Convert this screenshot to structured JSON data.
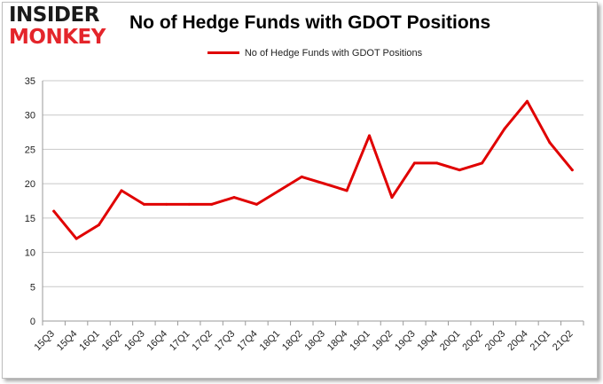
{
  "logo": {
    "line1": "INSIDER",
    "line2": "MONKEY"
  },
  "chart_data": {
    "type": "line",
    "title": "No of Hedge Funds with GDOT Positions",
    "xlabel": "",
    "ylabel": "",
    "categories": [
      "15Q3",
      "15Q4",
      "16Q1",
      "16Q2",
      "16Q3",
      "16Q4",
      "17Q1",
      "17Q2",
      "17Q3",
      "17Q4",
      "18Q1",
      "18Q2",
      "18Q3",
      "18Q4",
      "19Q1",
      "19Q2",
      "19Q3",
      "19Q4",
      "20Q1",
      "20Q2",
      "20Q3",
      "20Q4",
      "21Q1",
      "21Q2"
    ],
    "series": [
      {
        "name": "No of Hedge Funds with GDOT Positions",
        "color": "#e00000",
        "values": [
          16,
          12,
          14,
          19,
          17,
          17,
          17,
          17,
          18,
          17,
          19,
          21,
          20,
          19,
          27,
          18,
          23,
          23,
          22,
          23,
          28,
          32,
          26,
          22
        ]
      }
    ],
    "ylim": [
      0,
      35
    ],
    "yticks": [
      0,
      5,
      10,
      15,
      20,
      25,
      30,
      35
    ],
    "grid": true,
    "legend_position": "top-center"
  }
}
